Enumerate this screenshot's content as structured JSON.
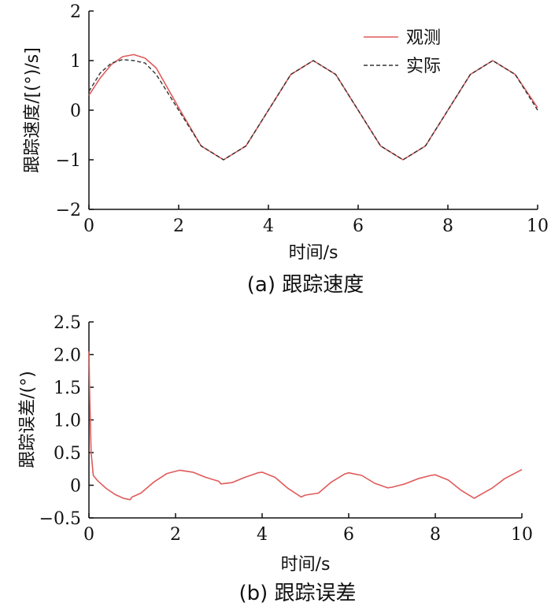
{
  "chart_data": [
    {
      "type": "line",
      "caption": "(a) 跟踪速度",
      "xlabel": "时间/s",
      "ylabel": "跟踪速度/[(°)/s]",
      "xlim": [
        0,
        10
      ],
      "ylim": [
        -2,
        2
      ],
      "xticks": [
        "0",
        "2",
        "4",
        "6",
        "8",
        "10"
      ],
      "yticks": [
        "2",
        "1",
        "0",
        "−1",
        "−2"
      ],
      "legend": {
        "placement": "top-right"
      },
      "series": [
        {
          "name": "观测",
          "color": "#e05a5a",
          "style": "solid",
          "x": [
            0,
            0.25,
            0.5,
            0.75,
            1.0,
            1.25,
            1.5,
            2.0,
            2.5,
            3.0,
            3.5,
            4.0,
            4.5,
            5.0,
            5.5,
            6.0,
            6.5,
            7.0,
            7.5,
            8.0,
            8.5,
            9.0,
            9.5,
            10.0
          ],
          "y": [
            0.3,
            0.65,
            0.92,
            1.08,
            1.12,
            1.05,
            0.85,
            0.05,
            -0.72,
            -1.0,
            -0.72,
            0.0,
            0.72,
            1.0,
            0.72,
            0.0,
            -0.72,
            -1.0,
            -0.72,
            0.0,
            0.72,
            1.0,
            0.72,
            0.05
          ]
        },
        {
          "name": "实际",
          "color": "#333333",
          "style": "dashed",
          "x": [
            0,
            0.25,
            0.5,
            0.75,
            1.0,
            1.25,
            1.5,
            2.0,
            2.5,
            3.0,
            3.5,
            4.0,
            4.5,
            5.0,
            5.5,
            6.0,
            6.5,
            7.0,
            7.5,
            8.0,
            8.5,
            9.0,
            9.5,
            10.0
          ],
          "y": [
            0.38,
            0.75,
            0.95,
            1.02,
            1.0,
            0.95,
            0.72,
            0.0,
            -0.72,
            -1.0,
            -0.72,
            0.0,
            0.72,
            1.0,
            0.72,
            0.0,
            -0.72,
            -1.0,
            -0.72,
            0.0,
            0.72,
            1.0,
            0.72,
            0.0
          ]
        }
      ]
    },
    {
      "type": "line",
      "caption": "(b) 跟踪误差",
      "xlabel": "时间/s",
      "ylabel": "跟踪误差/(°)",
      "xlim": [
        0,
        10
      ],
      "ylim": [
        -0.5,
        2.5
      ],
      "xticks": [
        "0",
        "2",
        "4",
        "6",
        "8",
        "10"
      ],
      "yticks": [
        "2.5",
        "2.0",
        "1.5",
        "1.0",
        "0.5",
        "0",
        "−0.5"
      ],
      "series": [
        {
          "color": "#e05a5a",
          "style": "solid",
          "x": [
            0,
            0.02,
            0.05,
            0.1,
            0.2,
            0.4,
            0.6,
            0.8,
            0.95,
            1.0,
            1.2,
            1.5,
            1.8,
            2.1,
            2.4,
            2.7,
            3.0,
            3.05,
            3.3,
            3.6,
            3.9,
            4.0,
            4.3,
            4.6,
            4.9,
            5.0,
            5.3,
            5.6,
            5.9,
            6.0,
            6.3,
            6.6,
            6.9,
            7.0,
            7.3,
            7.6,
            7.9,
            8.0,
            8.3,
            8.6,
            8.9,
            9.0,
            9.3,
            9.6,
            10.0
          ],
          "y": [
            2.05,
            1.3,
            0.5,
            0.15,
            0.07,
            -0.05,
            -0.14,
            -0.2,
            -0.22,
            -0.18,
            -0.12,
            0.05,
            0.18,
            0.23,
            0.2,
            0.12,
            0.06,
            0.02,
            0.04,
            0.12,
            0.19,
            0.2,
            0.12,
            -0.05,
            -0.18,
            -0.15,
            -0.12,
            0.05,
            0.17,
            0.19,
            0.15,
            0.03,
            -0.04,
            -0.03,
            0.02,
            0.1,
            0.15,
            0.16,
            0.08,
            -0.08,
            -0.2,
            -0.16,
            -0.05,
            0.1,
            0.24
          ]
        }
      ]
    }
  ]
}
